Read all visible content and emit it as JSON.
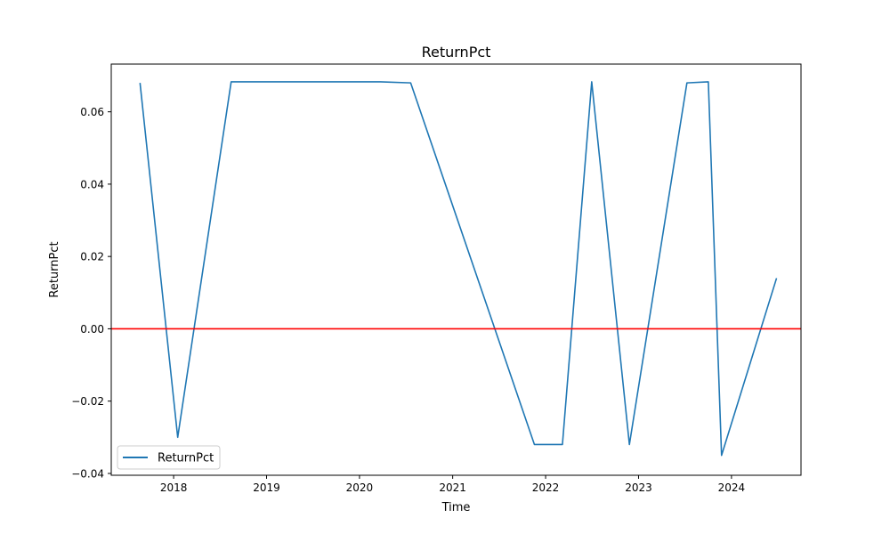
{
  "chart_data": {
    "type": "line",
    "title": "ReturnPct",
    "xlabel": "Time",
    "ylabel": "ReturnPct",
    "x_ticks": [
      "2018",
      "2019",
      "2020",
      "2021",
      "2022",
      "2023",
      "2024"
    ],
    "y_ticks": [
      "−0.04",
      "−0.02",
      "0.00",
      "0.02",
      "0.04",
      "0.06"
    ],
    "xlim": [
      "2017-05-01",
      "2024-09-30"
    ],
    "ylim": [
      -0.0405,
      0.0732
    ],
    "grid": false,
    "legend_position": "lower-left",
    "series": [
      {
        "name": "ReturnPct",
        "color": "#1f77b4",
        "points": [
          {
            "x": "2017-08-22",
            "y": 0.068
          },
          {
            "x": "2018-01-17",
            "y": -0.03
          },
          {
            "x": "2018-08-15",
            "y": 0.0683
          },
          {
            "x": "2020-03-23",
            "y": 0.0683
          },
          {
            "x": "2020-07-20",
            "y": 0.068
          },
          {
            "x": "2021-11-18",
            "y": -0.032
          },
          {
            "x": "2022-03-08",
            "y": -0.032
          },
          {
            "x": "2022-07-01",
            "y": 0.0683
          },
          {
            "x": "2022-11-26",
            "y": -0.032
          },
          {
            "x": "2023-07-10",
            "y": 0.068
          },
          {
            "x": "2023-10-02",
            "y": 0.0683
          },
          {
            "x": "2023-11-23",
            "y": -0.035
          },
          {
            "x": "2024-06-26",
            "y": 0.014
          }
        ]
      }
    ],
    "reference_lines": [
      {
        "y": 0.0,
        "color": "#ff0000"
      }
    ]
  }
}
